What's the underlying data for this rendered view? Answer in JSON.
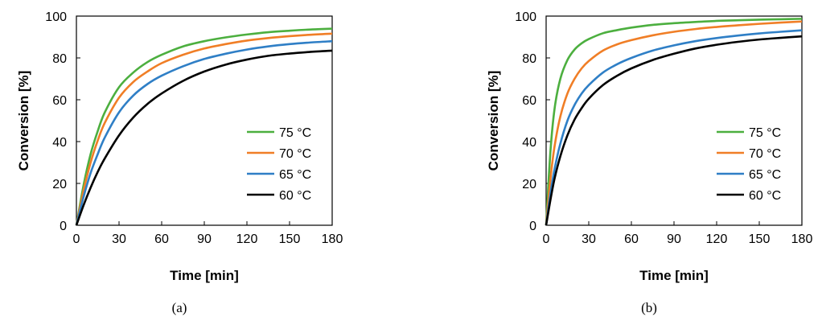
{
  "chart_data": [
    {
      "type": "line",
      "caption": "(a)",
      "xlabel": "Time [min]",
      "ylabel": "Conversion [%]",
      "xlim": [
        0,
        180
      ],
      "ylim": [
        0,
        100
      ],
      "xticks": [
        "0",
        "30",
        "60",
        "90",
        "120",
        "150",
        "180"
      ],
      "yticks": [
        "0",
        "20",
        "40",
        "60",
        "80",
        "100"
      ],
      "grid": false,
      "legend_position": "right",
      "x": [
        0,
        5,
        10,
        15,
        20,
        30,
        40,
        50,
        60,
        75,
        90,
        105,
        120,
        135,
        150,
        165,
        180
      ],
      "series": [
        {
          "name": "75 °C",
          "color": "#4caf3f",
          "values": [
            0,
            19,
            34,
            45,
            54,
            66,
            73,
            78,
            81.5,
            85.5,
            88,
            89.8,
            91.2,
            92.3,
            93,
            93.6,
            94
          ]
        },
        {
          "name": "70 °C",
          "color": "#f07e26",
          "values": [
            0,
            16.5,
            30,
            40.5,
            49,
            61,
            68.5,
            73.5,
            77.5,
            81.5,
            84.5,
            86.6,
            88.3,
            89.5,
            90.4,
            91.1,
            91.6
          ]
        },
        {
          "name": "65 °C",
          "color": "#2f7fc6",
          "values": [
            0,
            13.5,
            25,
            34,
            42,
            54,
            62,
            67.5,
            71.5,
            76,
            79.5,
            82,
            84,
            85.5,
            86.6,
            87.4,
            88
          ]
        },
        {
          "name": "60 °C",
          "color": "#000000",
          "values": [
            0,
            9.5,
            18,
            25.5,
            32,
            43,
            51.5,
            58,
            63,
            69,
            73.5,
            76.8,
            79.2,
            81,
            82.1,
            82.9,
            83.5
          ]
        }
      ]
    },
    {
      "type": "line",
      "caption": "(b)",
      "xlabel": "Time [min]",
      "ylabel": "Conversion [%]",
      "xlim": [
        0,
        180
      ],
      "ylim": [
        0,
        100
      ],
      "xticks": [
        "0",
        "30",
        "60",
        "90",
        "120",
        "150",
        "180"
      ],
      "yticks": [
        "0",
        "20",
        "40",
        "60",
        "80",
        "100"
      ],
      "grid": false,
      "legend_position": "right",
      "x": [
        0,
        3,
        6,
        10,
        15,
        20,
        25,
        30,
        40,
        50,
        60,
        75,
        90,
        105,
        120,
        135,
        150,
        165,
        180
      ],
      "series": [
        {
          "name": "75 °C",
          "color": "#4caf3f",
          "values": [
            0,
            35,
            56,
            70,
            79,
            84,
            87,
            89,
            91.8,
            93.3,
            94.5,
            95.8,
            96.6,
            97.2,
            97.7,
            98,
            98.3,
            98.5,
            98.7
          ]
        },
        {
          "name": "70 °C",
          "color": "#f07e26",
          "values": [
            0,
            22,
            38,
            52,
            63,
            70,
            75,
            78.5,
            83.5,
            86.5,
            88.5,
            90.8,
            92.5,
            93.8,
            94.8,
            95.6,
            96.3,
            96.9,
            97.4
          ]
        },
        {
          "name": "65 °C",
          "color": "#2f7fc6",
          "values": [
            0,
            15,
            27,
            39,
            50,
            57.5,
            63,
            67,
            73,
            77,
            80,
            83.5,
            86,
            88,
            89.5,
            90.7,
            91.7,
            92.5,
            93.2
          ]
        },
        {
          "name": "60 °C",
          "color": "#000000",
          "values": [
            0,
            12,
            22.5,
            33,
            43,
            50.5,
            56,
            60.5,
            67,
            71.5,
            75,
            79,
            82,
            84.5,
            86.3,
            87.7,
            88.8,
            89.6,
            90.3
          ]
        }
      ]
    }
  ]
}
